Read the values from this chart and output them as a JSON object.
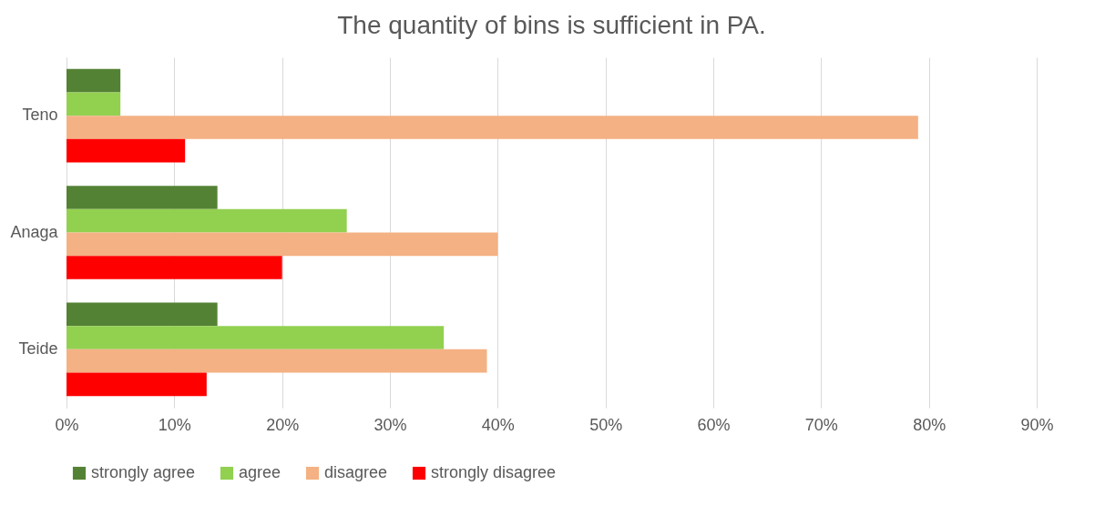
{
  "chart_data": {
    "type": "bar",
    "orientation": "horizontal",
    "title": "The quantity of bins is sufficient in PA.",
    "categories": [
      "Teno",
      "Anaga",
      "Teide"
    ],
    "series": [
      {
        "name": "strongly agree",
        "color": "#548235",
        "values": [
          5,
          14,
          14
        ]
      },
      {
        "name": "agree",
        "color": "#92d050",
        "values": [
          5,
          26,
          35
        ]
      },
      {
        "name": "disagree",
        "color": "#f4b183",
        "values": [
          79,
          40,
          39
        ]
      },
      {
        "name": "strongly disagree",
        "color": "#ff0000",
        "values": [
          11,
          20,
          13
        ]
      }
    ],
    "xlim": [
      0,
      90
    ],
    "xticks": [
      {
        "value": 0,
        "label": "0%"
      },
      {
        "value": 10,
        "label": "10%"
      },
      {
        "value": 20,
        "label": "20%"
      },
      {
        "value": 30,
        "label": "30%"
      },
      {
        "value": 40,
        "label": "40%"
      },
      {
        "value": 50,
        "label": "50%"
      },
      {
        "value": 60,
        "label": "60%"
      },
      {
        "value": 70,
        "label": "70%"
      },
      {
        "value": 80,
        "label": "80%"
      },
      {
        "value": 90,
        "label": "90%"
      }
    ],
    "grid": "x",
    "legend": "bottom"
  }
}
